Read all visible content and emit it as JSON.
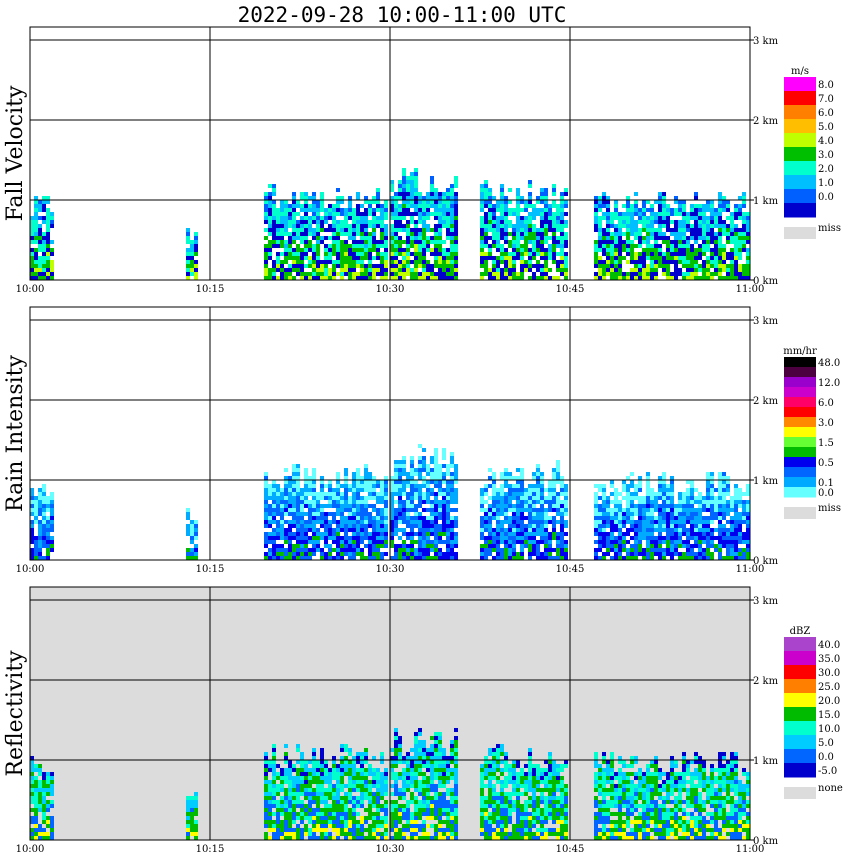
{
  "title": "2022-09-28   10:00-11:00 UTC",
  "panels": [
    {
      "label": "Fall Velocity",
      "unit": "m/s",
      "legend": [
        {
          "label": "8.0",
          "color": "#ff00ff"
        },
        {
          "label": "7.0",
          "color": "#ff0000"
        },
        {
          "label": "6.0",
          "color": "#ff7f00"
        },
        {
          "label": "5.0",
          "color": "#ffbf00"
        },
        {
          "label": "4.0",
          "color": "#bfff00"
        },
        {
          "label": "3.0",
          "color": "#00bf00"
        },
        {
          "label": "2.0",
          "color": "#00ffcc"
        },
        {
          "label": "1.0",
          "color": "#00bfff"
        },
        {
          "label": "0.0",
          "color": "#0060ff"
        },
        {
          "label": "",
          "color": "#0000cc"
        }
      ],
      "miss_label": "miss",
      "background": "#ffffff"
    },
    {
      "label": "Rain Intensity",
      "unit": "mm/hr",
      "legend": [
        {
          "label": "48.0",
          "color": "#000000"
        },
        {
          "label": "",
          "color": "#4d0040"
        },
        {
          "label": "12.0",
          "color": "#9900cc"
        },
        {
          "label": "",
          "color": "#cc00cc"
        },
        {
          "label": "6.0",
          "color": "#ff0066"
        },
        {
          "label": "",
          "color": "#ff0000"
        },
        {
          "label": "3.0",
          "color": "#ff8800"
        },
        {
          "label": "",
          "color": "#ffff00"
        },
        {
          "label": "1.5",
          "color": "#66ff33"
        },
        {
          "label": "",
          "color": "#00bb00"
        },
        {
          "label": "0.5",
          "color": "#0000ee"
        },
        {
          "label": "",
          "color": "#0066ff"
        },
        {
          "label": "0.1",
          "color": "#00aaff"
        },
        {
          "label": "0.0",
          "color": "#66ffff"
        }
      ],
      "miss_label": "miss",
      "background": "#ffffff"
    },
    {
      "label": "Reflectivity",
      "unit": "dBZ",
      "legend": [
        {
          "label": "40.0",
          "color": "#aa44cc"
        },
        {
          "label": "35.0",
          "color": "#cc00cc"
        },
        {
          "label": "30.0",
          "color": "#ff0000"
        },
        {
          "label": "25.0",
          "color": "#ff7f00"
        },
        {
          "label": "20.0",
          "color": "#ffff00"
        },
        {
          "label": "15.0",
          "color": "#00bb00"
        },
        {
          "label": "10.0",
          "color": "#00ffcc"
        },
        {
          "label": "5.0",
          "color": "#00ccff"
        },
        {
          "label": "0.0",
          "color": "#0066ff"
        },
        {
          "label": "-5.0",
          "color": "#0000cc"
        }
      ],
      "miss_label": "none",
      "background": "#dcdcdc"
    }
  ],
  "chart_data": {
    "type": "heatmap",
    "x_ticks": [
      "10:00",
      "10:15",
      "10:30",
      "10:45",
      "11:00"
    ],
    "y_ticks": [
      "0 km",
      "1 km",
      "2 km",
      "3 km"
    ],
    "xlim_minutes": [
      0,
      60
    ],
    "ylim_km": [
      0,
      3.5
    ]
  },
  "colors": {
    "missing": "#dcdcdc",
    "grid": "#000000"
  }
}
